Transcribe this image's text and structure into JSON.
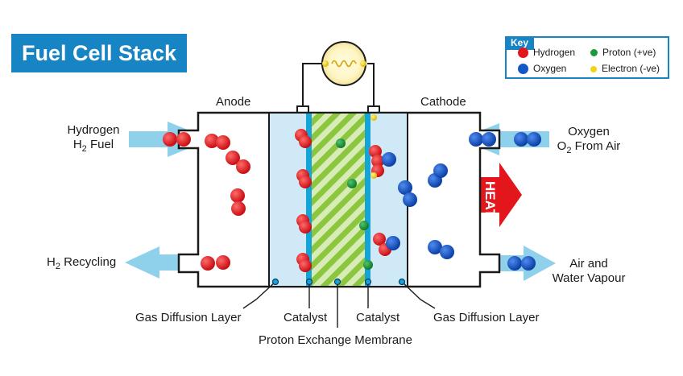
{
  "title": "Fuel Cell Stack",
  "key": {
    "title": "Key",
    "items": [
      {
        "label": "Hydrogen",
        "color": "#e3161c"
      },
      {
        "label": "Proton (+ve)",
        "color": "#1b9a3a"
      },
      {
        "label": "Oxygen",
        "color": "#1458c8"
      },
      {
        "label": "Electron (-ve)",
        "color": "#f3d21c"
      }
    ]
  },
  "labels": {
    "anode": "Anode",
    "cathode": "Cathode",
    "hydrogen_in_line1": "Hydrogen",
    "hydrogen_in_line2_prefix": "H",
    "hydrogen_in_line2_sub": "2",
    "hydrogen_in_line2_suffix": " Fuel",
    "h2_recycling_prefix": "H",
    "h2_recycling_sub": "2",
    "h2_recycling_suffix": " Recycling",
    "oxygen_in_line1": "Oxygen",
    "oxygen_in_line2_prefix": "O",
    "oxygen_in_line2_sub": "2",
    "oxygen_in_line2_suffix": " From Air",
    "air_out_line1": "Air and",
    "air_out_line2": "Water Vapour",
    "heat": "HEAT",
    "gdl_left": "Gas Diffusion Layer",
    "catalyst_left": "Catalyst",
    "membrane": "Proton Exchange Membrane",
    "catalyst_right": "Catalyst",
    "gdl_right": "Gas Diffusion Layer"
  },
  "colors": {
    "hydrogen": "#e3161c",
    "oxygen": "#1458c8",
    "proton": "#1b9a3a",
    "electron": "#f3d21c",
    "title_bg": "#1784c4",
    "flow_arrow": "#8fd0ea",
    "heat_arrow": "#e3161c",
    "gdl_fill": "#cfe9f7",
    "catalyst": "#14a4d8",
    "membrane_green": "#8cc63f"
  }
}
